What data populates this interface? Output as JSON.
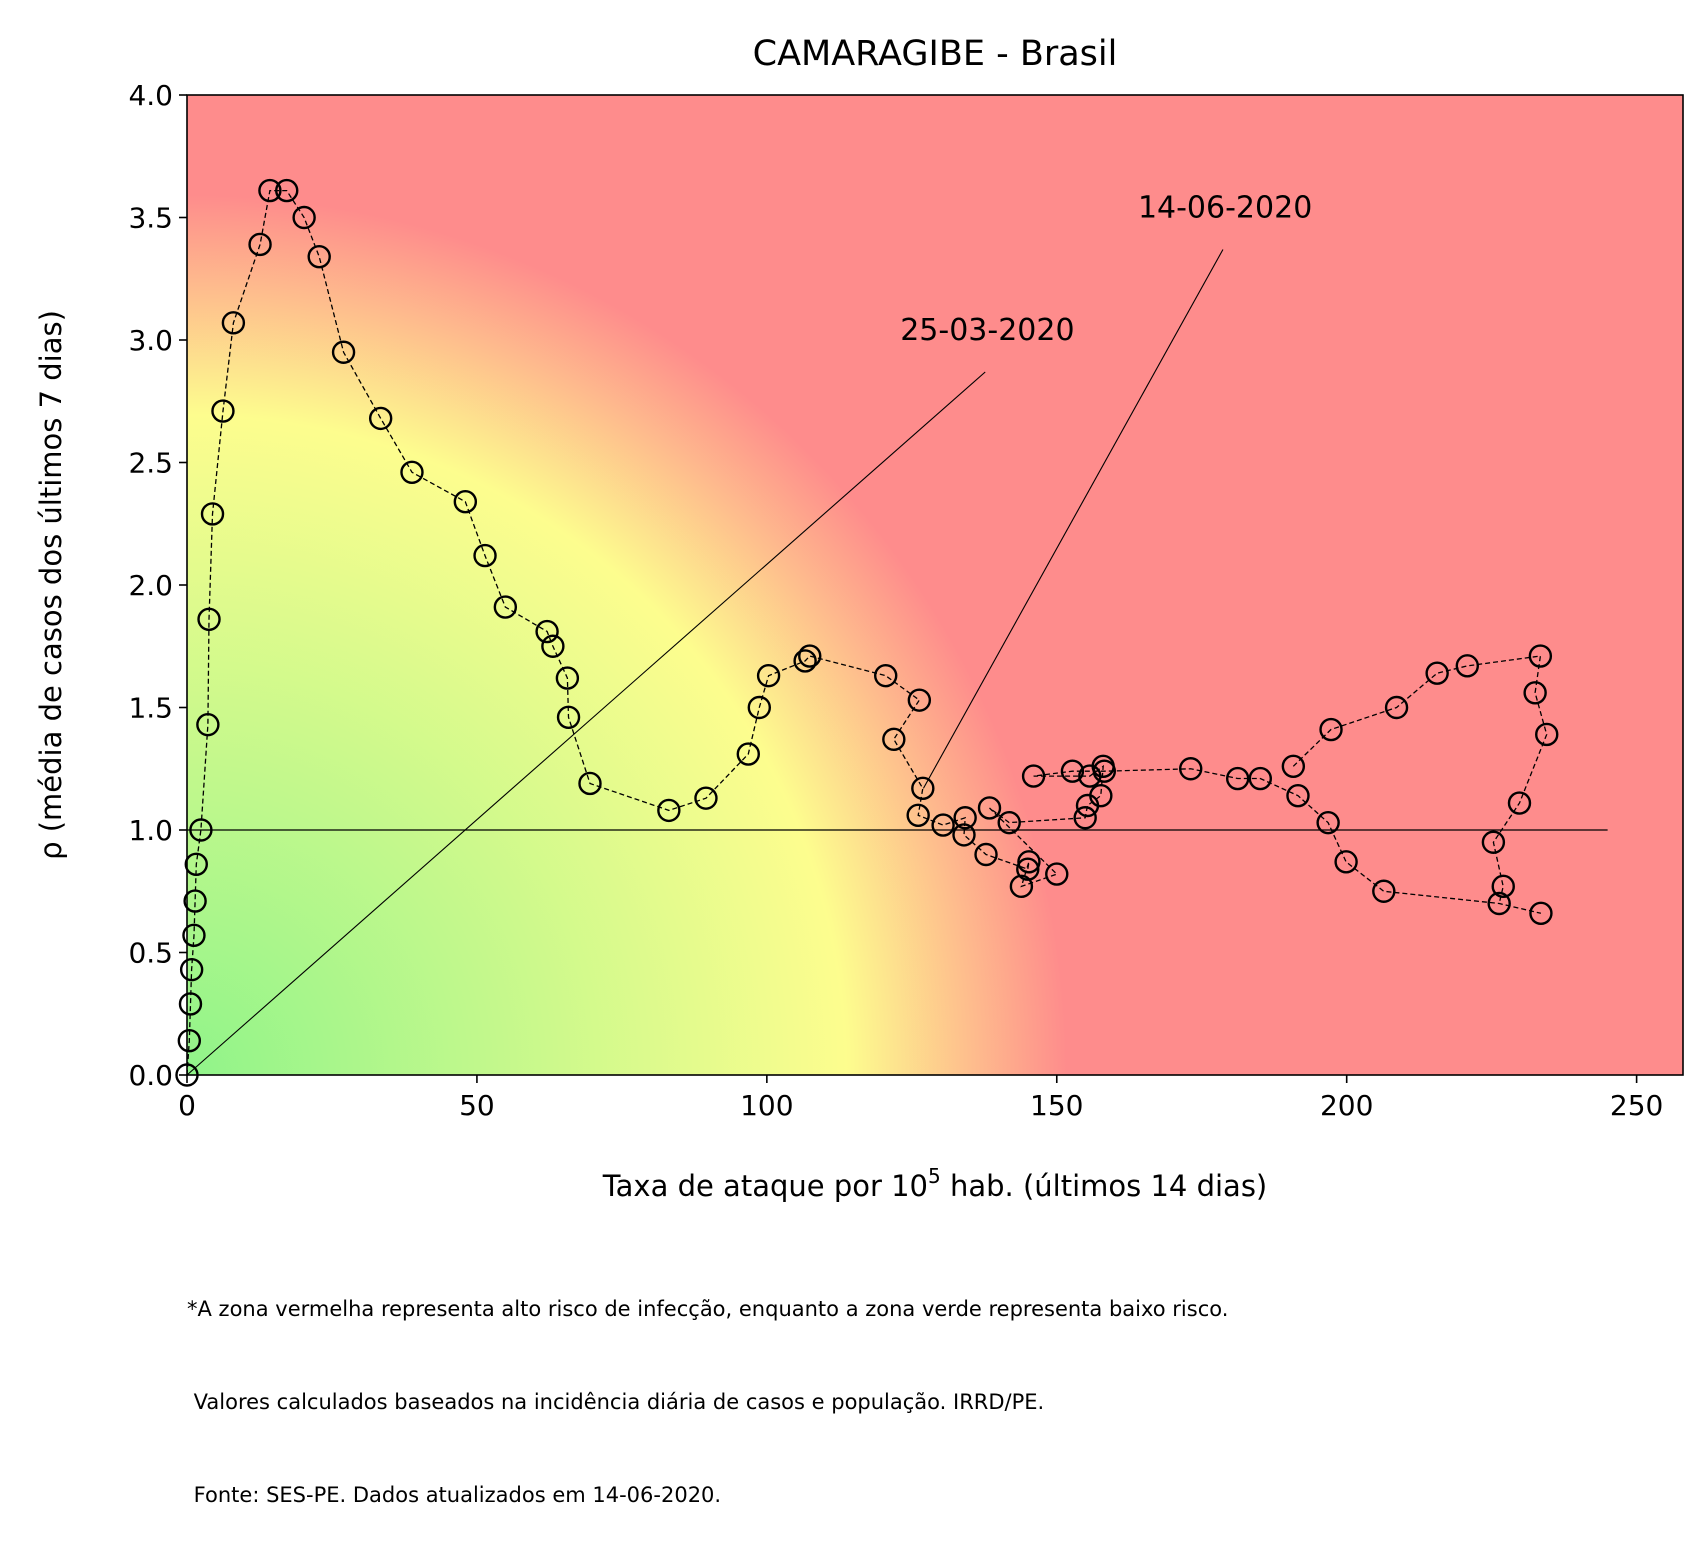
{
  "chart_data": {
    "type": "scatter",
    "title": "CAMARAGIBE - Brasil",
    "xlabel_main": "Taxa de ataque por 10",
    "xlabel_sup": "5",
    "xlabel_rest": " hab. (últimos 14 dias)",
    "ylabel": "ρ (média de casos dos últimos 7 dias)",
    "xlim": [
      0,
      258
    ],
    "ylim": [
      0,
      4
    ],
    "x_ticks": [
      "0",
      "50",
      "100",
      "150",
      "200",
      "250"
    ],
    "y_ticks": [
      "0.0",
      "0.5",
      "1.0",
      "1.5",
      "2.0",
      "2.5",
      "3.0",
      "3.5",
      "4.0"
    ],
    "reference_line": {
      "y": 1.0,
      "x_start": 0,
      "x_end": 245
    },
    "annotations": [
      {
        "text": "25-03-2020",
        "text_x": 123,
        "text_y": 3.0,
        "point_x": 0,
        "point_y": 0
      },
      {
        "text": "14-06-2020",
        "text_x": 164,
        "text_y": 3.5,
        "point_x": 127,
        "point_y": 1.17
      }
    ],
    "background_zones": {
      "low_risk_color": "#90f48a",
      "mid_risk_color": "#fdfd8e",
      "high_risk_color": "#fe8c8c"
    },
    "series": [
      {
        "marker": "open-circle",
        "line": "dashed",
        "points": [
          [
            0,
            0
          ],
          [
            0.4,
            0.14
          ],
          [
            0.6,
            0.29
          ],
          [
            0.8,
            0.43
          ],
          [
            1.2,
            0.57
          ],
          [
            1.4,
            0.71
          ],
          [
            1.6,
            0.86
          ],
          [
            2.4,
            1.0
          ],
          [
            3.6,
            1.43
          ],
          [
            3.8,
            1.86
          ],
          [
            4.4,
            2.29
          ],
          [
            6.2,
            2.71
          ],
          [
            8,
            3.07
          ],
          [
            12.6,
            3.39
          ],
          [
            14.3,
            3.61
          ],
          [
            17.2,
            3.61
          ],
          [
            20.2,
            3.5
          ],
          [
            22.8,
            3.34
          ],
          [
            27,
            2.95
          ],
          [
            33.4,
            2.68
          ],
          [
            38.8,
            2.46
          ],
          [
            48,
            2.34
          ],
          [
            51.4,
            2.12
          ],
          [
            54.9,
            1.91
          ],
          [
            62.1,
            1.81
          ],
          [
            63.1,
            1.75
          ],
          [
            65.6,
            1.62
          ],
          [
            65.8,
            1.46
          ],
          [
            69.5,
            1.19
          ],
          [
            83.1,
            1.08
          ],
          [
            89.5,
            1.13
          ],
          [
            96.8,
            1.31
          ],
          [
            98.7,
            1.5
          ],
          [
            100.3,
            1.63
          ],
          [
            106.6,
            1.69
          ],
          [
            107.4,
            1.71
          ],
          [
            120.5,
            1.63
          ],
          [
            126.3,
            1.53
          ],
          [
            121.9,
            1.37
          ],
          [
            126.9,
            1.17
          ],
          [
            126.1,
            1.06
          ],
          [
            130.4,
            1.02
          ],
          [
            134.2,
            1.05
          ],
          [
            134.0,
            0.98
          ],
          [
            137.8,
            0.9
          ],
          [
            138.4,
            1.09
          ],
          [
            141.8,
            1.03
          ],
          [
            146.0,
            1.22
          ],
          [
            145.2,
            0.87
          ],
          [
            145.0,
            0.84
          ],
          [
            143.9,
            0.77
          ],
          [
            150.0,
            0.82
          ],
          [
            152.7,
            1.24
          ],
          [
            154.9,
            1.05
          ],
          [
            155.3,
            1.1
          ],
          [
            155.7,
            1.22
          ],
          [
            158.0,
            1.26
          ],
          [
            158.2,
            1.24
          ],
          [
            157.6,
            1.14
          ],
          [
            173.1,
            1.25
          ],
          [
            181.2,
            1.21
          ],
          [
            185.1,
            1.21
          ],
          [
            190.8,
            1.26
          ],
          [
            191.6,
            1.14
          ],
          [
            196.8,
            1.03
          ],
          [
            197.3,
            1.41
          ],
          [
            199.9,
            0.87
          ],
          [
            206.4,
            0.75
          ],
          [
            208.6,
            1.5
          ],
          [
            215.6,
            1.64
          ],
          [
            220.8,
            1.67
          ],
          [
            225.3,
            0.95
          ],
          [
            226.3,
            0.7
          ],
          [
            227.0,
            0.77
          ],
          [
            229.8,
            1.11
          ],
          [
            232.5,
            1.56
          ],
          [
            233.4,
            1.71
          ],
          [
            233.5,
            0.66
          ],
          [
            234.5,
            1.39
          ]
        ],
        "path_order": [
          [
            0,
            0
          ],
          [
            0.4,
            0.14
          ],
          [
            0.6,
            0.29
          ],
          [
            0.8,
            0.43
          ],
          [
            1.2,
            0.57
          ],
          [
            1.4,
            0.71
          ],
          [
            1.6,
            0.86
          ],
          [
            2.4,
            1.0
          ],
          [
            3.6,
            1.43
          ],
          [
            3.8,
            1.86
          ],
          [
            4.4,
            2.29
          ],
          [
            6.2,
            2.71
          ],
          [
            8,
            3.07
          ],
          [
            12.6,
            3.39
          ],
          [
            14.3,
            3.61
          ],
          [
            17.2,
            3.61
          ],
          [
            20.2,
            3.5
          ],
          [
            22.8,
            3.34
          ],
          [
            27,
            2.95
          ],
          [
            33.4,
            2.68
          ],
          [
            38.8,
            2.46
          ],
          [
            48,
            2.34
          ],
          [
            51.4,
            2.12
          ],
          [
            54.9,
            1.91
          ],
          [
            62.1,
            1.81
          ],
          [
            63.1,
            1.75
          ],
          [
            65.6,
            1.62
          ],
          [
            65.8,
            1.46
          ],
          [
            69.5,
            1.19
          ],
          [
            83.1,
            1.08
          ],
          [
            89.5,
            1.13
          ],
          [
            96.8,
            1.31
          ],
          [
            98.7,
            1.5
          ],
          [
            100.3,
            1.63
          ],
          [
            106.6,
            1.69
          ],
          [
            107.4,
            1.71
          ],
          [
            120.5,
            1.63
          ],
          [
            126.3,
            1.53
          ],
          [
            121.9,
            1.37
          ],
          [
            126.9,
            1.17
          ],
          [
            126.1,
            1.06
          ],
          [
            130.4,
            1.02
          ],
          [
            134.2,
            1.05
          ],
          [
            134.0,
            0.98
          ],
          [
            137.8,
            0.9
          ],
          [
            145.0,
            0.84
          ],
          [
            145.2,
            0.87
          ],
          [
            143.9,
            0.77
          ],
          [
            150.0,
            0.82
          ],
          [
            138.4,
            1.09
          ],
          [
            141.8,
            1.03
          ],
          [
            154.9,
            1.05
          ],
          [
            155.3,
            1.1
          ],
          [
            157.6,
            1.14
          ],
          [
            158.0,
            1.26
          ],
          [
            155.7,
            1.22
          ],
          [
            146.0,
            1.22
          ],
          [
            152.7,
            1.24
          ],
          [
            158.2,
            1.24
          ],
          [
            173.1,
            1.25
          ],
          [
            181.2,
            1.21
          ],
          [
            185.1,
            1.21
          ],
          [
            191.6,
            1.14
          ],
          [
            196.8,
            1.03
          ],
          [
            199.9,
            0.87
          ],
          [
            206.4,
            0.75
          ],
          [
            226.3,
            0.7
          ],
          [
            233.5,
            0.66
          ]
        ],
        "path_order_2": [
          [
            190.8,
            1.26
          ],
          [
            197.3,
            1.41
          ],
          [
            208.6,
            1.5
          ],
          [
            215.6,
            1.64
          ],
          [
            220.8,
            1.67
          ],
          [
            233.4,
            1.71
          ],
          [
            232.5,
            1.56
          ],
          [
            234.5,
            1.39
          ],
          [
            229.8,
            1.11
          ],
          [
            225.3,
            0.95
          ],
          [
            227.0,
            0.77
          ],
          [
            226.3,
            0.7
          ]
        ]
      }
    ],
    "grid": false
  },
  "footnote": {
    "line1": "*A zona vermelha representa alto risco de infecção, enquanto a zona verde representa baixo risco.",
    "line2": " Valores calculados baseados na incidência diária de casos e população. IRRD/PE.",
    "line3": " Fonte: SES-PE. Dados atualizados em 14-06-2020."
  }
}
